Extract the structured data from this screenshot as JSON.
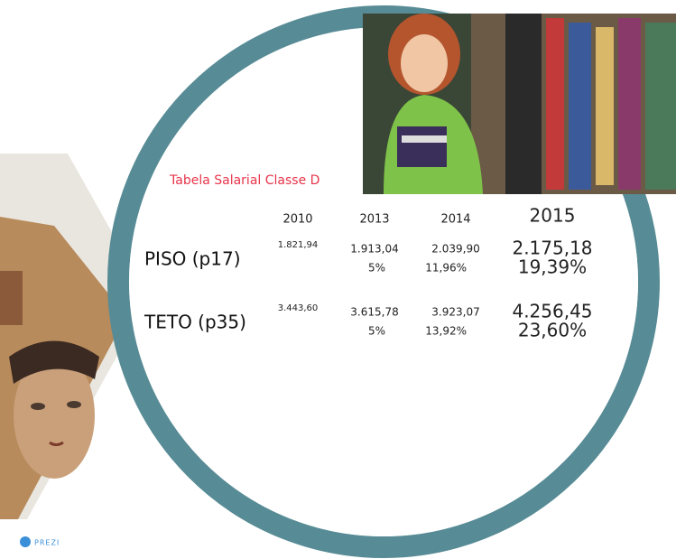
{
  "title": "Tabela Salarial Classe D",
  "table": {
    "header": [
      "2010",
      "2013",
      "2014",
      "2015"
    ],
    "rows": [
      {
        "label": "PISO (p17)",
        "values": [
          "1.821,94",
          "1.913,04",
          "2.039,90",
          "2.175,18"
        ],
        "percents": [
          "5%",
          "11,96%",
          "19,39%"
        ]
      },
      {
        "label": "TETO (p35)",
        "values": [
          "3.443,60",
          "3.615,78",
          "3.923,07",
          "4.256,45"
        ],
        "percents": [
          "5%",
          "13,92%",
          "23,60%"
        ]
      }
    ]
  },
  "logo": "PREZI"
}
